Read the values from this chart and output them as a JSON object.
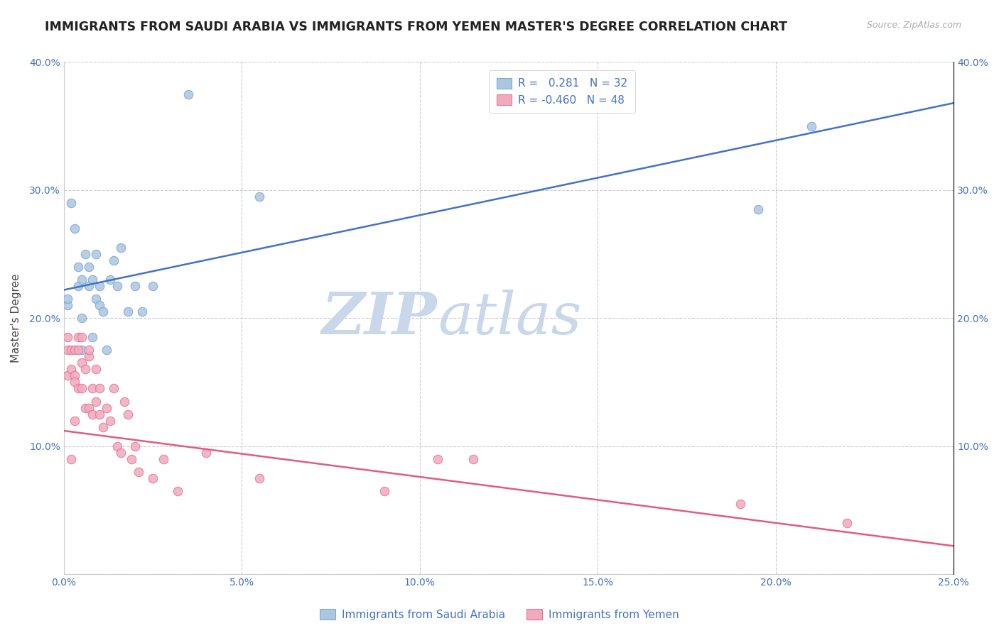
{
  "title": "IMMIGRANTS FROM SAUDI ARABIA VS IMMIGRANTS FROM YEMEN MASTER'S DEGREE CORRELATION CHART",
  "source_text": "Source: ZipAtlas.com",
  "xlabel": "",
  "ylabel": "Master's Degree",
  "xlim": [
    0.0,
    0.25
  ],
  "ylim": [
    0.0,
    0.4
  ],
  "xticks": [
    0.0,
    0.05,
    0.1,
    0.15,
    0.2,
    0.25
  ],
  "yticks": [
    0.0,
    0.1,
    0.2,
    0.3,
    0.4
  ],
  "xticklabels": [
    "0.0%",
    "5.0%",
    "10.0%",
    "15.0%",
    "20.0%",
    "25.0%"
  ],
  "yticklabels": [
    "",
    "10.0%",
    "20.0%",
    "30.0%",
    "40.0%"
  ],
  "saudi_color": "#adc6e0",
  "saudi_edge_color": "#7aaad0",
  "yemen_color": "#f2aabe",
  "yemen_edge_color": "#e07898",
  "line_saudi_color": "#4472c4",
  "line_yemen_color": "#e05c80",
  "saudi_R": 0.281,
  "saudi_N": 32,
  "yemen_R": -0.46,
  "yemen_N": 48,
  "legend_label_saudi": "Immigrants from Saudi Arabia",
  "legend_label_yemen": "Immigrants from Yemen",
  "watermark_zip": "ZIP",
  "watermark_atlas": "atlas",
  "watermark_color_zip": "#c8d8ea",
  "watermark_color_atlas": "#c8d8ea",
  "background_color": "#ffffff",
  "grid_color": "#cccccc",
  "title_color": "#222222",
  "tick_label_color": "#4472c4",
  "legend_text_color": "#4472c4",
  "title_fontsize": 12.5,
  "axis_label_fontsize": 11,
  "tick_fontsize": 10,
  "legend_fontsize": 11,
  "marker_size": 9,
  "line_width": 1.8,
  "saudi_line_x0": 0.0,
  "saudi_line_y0": 0.222,
  "saudi_line_x1": 0.25,
  "saudi_line_y1": 0.368,
  "yemen_line_x0": 0.0,
  "yemen_line_y0": 0.112,
  "yemen_line_x1": 0.25,
  "yemen_line_y1": 0.022,
  "saudi_x": [
    0.001,
    0.001,
    0.002,
    0.003,
    0.004,
    0.004,
    0.005,
    0.005,
    0.005,
    0.006,
    0.007,
    0.007,
    0.008,
    0.008,
    0.009,
    0.009,
    0.01,
    0.01,
    0.011,
    0.012,
    0.013,
    0.014,
    0.015,
    0.016,
    0.018,
    0.02,
    0.022,
    0.025,
    0.035,
    0.055,
    0.195,
    0.21
  ],
  "saudi_y": [
    0.21,
    0.215,
    0.29,
    0.27,
    0.225,
    0.24,
    0.175,
    0.2,
    0.23,
    0.25,
    0.225,
    0.24,
    0.185,
    0.23,
    0.215,
    0.25,
    0.225,
    0.21,
    0.205,
    0.175,
    0.23,
    0.245,
    0.225,
    0.255,
    0.205,
    0.225,
    0.205,
    0.225,
    0.375,
    0.295,
    0.285,
    0.35
  ],
  "yemen_x": [
    0.001,
    0.001,
    0.001,
    0.002,
    0.002,
    0.002,
    0.003,
    0.003,
    0.003,
    0.003,
    0.004,
    0.004,
    0.004,
    0.005,
    0.005,
    0.005,
    0.006,
    0.006,
    0.007,
    0.007,
    0.007,
    0.008,
    0.008,
    0.009,
    0.009,
    0.01,
    0.01,
    0.011,
    0.012,
    0.013,
    0.014,
    0.015,
    0.016,
    0.017,
    0.018,
    0.019,
    0.02,
    0.021,
    0.025,
    0.028,
    0.032,
    0.04,
    0.055,
    0.09,
    0.105,
    0.115,
    0.19,
    0.22
  ],
  "yemen_y": [
    0.175,
    0.155,
    0.185,
    0.16,
    0.175,
    0.09,
    0.155,
    0.12,
    0.15,
    0.175,
    0.145,
    0.175,
    0.185,
    0.145,
    0.165,
    0.185,
    0.13,
    0.16,
    0.13,
    0.17,
    0.175,
    0.125,
    0.145,
    0.135,
    0.16,
    0.125,
    0.145,
    0.115,
    0.13,
    0.12,
    0.145,
    0.1,
    0.095,
    0.135,
    0.125,
    0.09,
    0.1,
    0.08,
    0.075,
    0.09,
    0.065,
    0.095,
    0.075,
    0.065,
    0.09,
    0.09,
    0.055,
    0.04
  ]
}
